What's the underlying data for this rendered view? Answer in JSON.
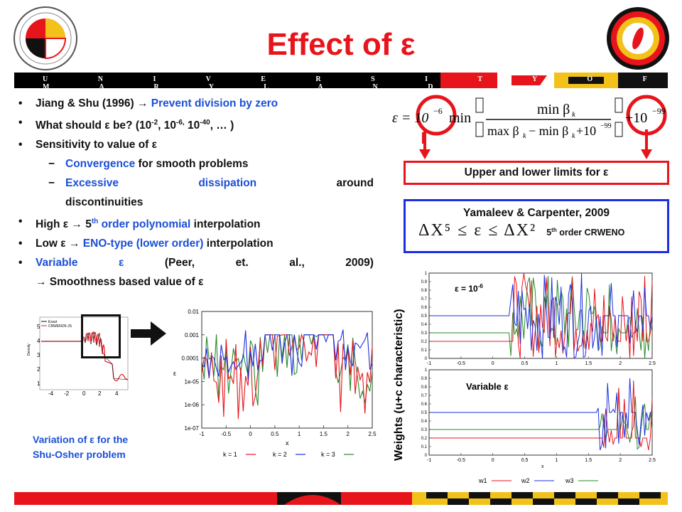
{
  "title": "Effect of ε",
  "header_band_text": "U N I V E R S I T Y   O F   M A R Y L A N D",
  "logos": {
    "umd": "University of Maryland seal",
    "gessow": "Alfred Gessow Rotorcraft Center"
  },
  "bullets": [
    {
      "parts": [
        {
          "t": "Jiang & Shu (1996) ",
          "c": "black"
        },
        {
          "t": "→ ",
          "c": "black"
        },
        {
          "t": "Prevent division by zero",
          "c": "blue"
        }
      ]
    },
    {
      "parts": [
        {
          "t": "What should ε be? (10",
          "c": "black"
        },
        {
          "t": "-2",
          "sup": true
        },
        {
          "t": ", 10",
          "c": "black"
        },
        {
          "t": "-6,",
          "sup": true
        },
        {
          "t": " 10",
          "c": "black"
        },
        {
          "t": "-40",
          "sup": true
        },
        {
          "t": ", … )",
          "c": "black"
        }
      ]
    },
    {
      "text": "Sensitivity to value of ε"
    }
  ],
  "sub_bullets": [
    {
      "blue": "Convergence",
      "rest": " for smooth problems"
    },
    {
      "words": [
        "Excessive",
        "dissipation",
        "around"
      ],
      "cont": "discontinuities"
    }
  ],
  "bullets2": {
    "high_pre": "High ε → 5",
    "high_sup": "th",
    "high_blue": " order polynomial",
    "high_post": " interpolation",
    "low_pre": "Low ε → ",
    "low_blue": "ENO-type (lower order)",
    "low_post": " interpolation",
    "var_words": [
      "Variable",
      "ε",
      "(Peer,",
      "et.",
      "al.,",
      "2009)"
    ],
    "var_cont": "→ Smoothness based value of ε"
  },
  "formula": {
    "text": "ε = 10^-6 min( min β_k / (max β_k − min β_k + 10^-99) ) + 10^-99"
  },
  "limits_box": "Upper and lower limits for ε",
  "yamaleev": {
    "title": "Yamaleev & Carpenter, 2009",
    "formula": "ΔX⁵ ≤ ε ≤ ΔX²",
    "note_pre": "5",
    "note_sup": "th",
    "note_post": " order CRWENO"
  },
  "inset": {
    "legend1": "Exact",
    "legend2": "CRWENO5-JS",
    "ylabel": "Density"
  },
  "caption": [
    "Variation of ε for the",
    "Shu-Osher problem"
  ],
  "eps_plot": {
    "ylabel": "ε",
    "xlabel": "x",
    "legend": [
      "k = 1",
      "k = 2",
      "k = 3"
    ]
  },
  "weights": {
    "ylabel": "Weights (u+c characteristic)",
    "top_label": "ε = 10",
    "top_sup": "-6",
    "bottom_label": "Variable ε",
    "xlabel": "x",
    "legend": [
      "w1",
      "w2",
      "w3"
    ]
  },
  "colors": {
    "red": "#e8141b",
    "blue": "#1b2fe0",
    "green": "#2a8a2a",
    "gold": "#f2c21b",
    "text_blue": "#1a4fd6"
  },
  "chart_data": [
    {
      "type": "line",
      "title": "",
      "xlabel": "x",
      "ylabel": "ε",
      "xlim": [
        -1,
        2.5
      ],
      "ylim": [
        1e-07,
        0.01
      ],
      "log_y": true,
      "x_ticks": [
        "-1",
        "-0.5",
        "0",
        "0.5",
        "1",
        "1.5",
        "2",
        "2.5"
      ],
      "y_ticks": [
        "0.01",
        "0.001",
        "0.0001",
        "1e-05",
        "1e-06",
        "1e-07"
      ],
      "series": [
        {
          "name": "k = 1",
          "color": "#e8141b"
        },
        {
          "name": "k = 2",
          "color": "#1b2fe0"
        },
        {
          "name": "k = 3",
          "color": "#2a8a2a"
        }
      ]
    },
    {
      "type": "line",
      "title": "",
      "xlabel": "x",
      "ylabel": "Weights (u+c characteristic)",
      "xlim": [
        -1,
        2.5
      ],
      "ylim": [
        0,
        1
      ],
      "x_ticks": [
        "-1",
        "-0.5",
        "0",
        "0.5",
        "1",
        "1.5",
        "2",
        "2.5"
      ],
      "y_ticks": [
        "0",
        "0.1",
        "0.2",
        "0.3",
        "0.4",
        "0.5",
        "0.6",
        "0.7",
        "0.8",
        "0.9",
        "1"
      ],
      "panels": [
        "ε = 10^-6",
        "Variable ε"
      ],
      "series": [
        {
          "name": "w1",
          "color": "#e8141b"
        },
        {
          "name": "w2",
          "color": "#1b2fe0"
        },
        {
          "name": "w3",
          "color": "#2a8a2a"
        }
      ]
    }
  ]
}
